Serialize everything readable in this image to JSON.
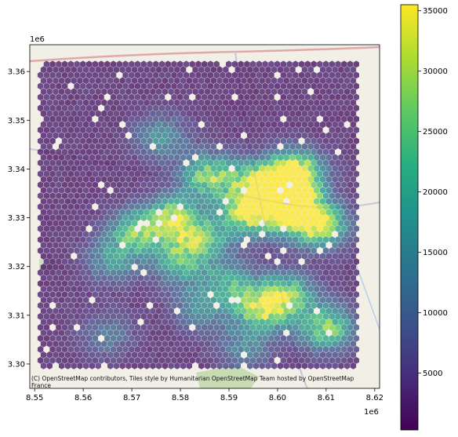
{
  "chart_data": {
    "type": "heatmap",
    "subtype": "hexbin over basemap",
    "title": "",
    "xlabel": "",
    "ylabel": "",
    "x_offset_label": "1e6",
    "y_offset_label": "1e6",
    "xlim": [
      8.549,
      8.621
    ],
    "ylim": [
      3.295,
      3.3655
    ],
    "x_ticks": [
      {
        "value": 8.55,
        "label": "8.55"
      },
      {
        "value": 8.56,
        "label": "8.56"
      },
      {
        "value": 8.57,
        "label": "8.57"
      },
      {
        "value": 8.58,
        "label": "8.58"
      },
      {
        "value": 8.59,
        "label": "8.59"
      },
      {
        "value": 8.6,
        "label": "8.60"
      },
      {
        "value": 8.61,
        "label": "8.61"
      },
      {
        "value": 8.62,
        "label": "8.62"
      }
    ],
    "y_ticks": [
      {
        "value": 3.3,
        "label": "3.30"
      },
      {
        "value": 3.31,
        "label": "3.31"
      },
      {
        "value": 3.32,
        "label": "3.32"
      },
      {
        "value": 3.33,
        "label": "3.33"
      },
      {
        "value": 3.34,
        "label": "3.34"
      },
      {
        "value": 3.35,
        "label": "3.35"
      },
      {
        "value": 3.36,
        "label": "3.36"
      }
    ],
    "colorbar": {
      "colormap": "viridis",
      "vmin": 300,
      "vmax": 35500,
      "ticks": [
        {
          "value": 5000,
          "label": "5000"
        },
        {
          "value": 10000,
          "label": "10000"
        },
        {
          "value": 15000,
          "label": "15000"
        },
        {
          "value": 20000,
          "label": "20000"
        },
        {
          "value": 25000,
          "label": "25000"
        },
        {
          "value": 30000,
          "label": "30000"
        },
        {
          "value": 35000,
          "label": "35000"
        }
      ]
    },
    "hotspots": [
      {
        "x": 8.602,
        "y": 3.336,
        "value": 34000
      },
      {
        "x": 8.603,
        "y": 3.331,
        "value": 33000
      },
      {
        "x": 8.594,
        "y": 3.331,
        "value": 31000
      },
      {
        "x": 8.5785,
        "y": 3.3295,
        "value": 30000
      },
      {
        "x": 8.586,
        "y": 3.3385,
        "value": 27000
      },
      {
        "x": 8.596,
        "y": 3.337,
        "value": 26000
      },
      {
        "x": 8.609,
        "y": 3.3285,
        "value": 28000
      },
      {
        "x": 8.604,
        "y": 3.3395,
        "value": 27000
      },
      {
        "x": 8.5965,
        "y": 3.3115,
        "value": 27000
      },
      {
        "x": 8.61,
        "y": 3.3075,
        "value": 26000
      },
      {
        "x": 8.602,
        "y": 3.314,
        "value": 24000
      },
      {
        "x": 8.571,
        "y": 3.327,
        "value": 22000
      },
      {
        "x": 8.58,
        "y": 3.321,
        "value": 20000
      },
      {
        "x": 8.585,
        "y": 3.3255,
        "value": 18000
      },
      {
        "x": 8.59,
        "y": 3.3165,
        "value": 17000
      },
      {
        "x": 8.566,
        "y": 3.3215,
        "value": 14000
      },
      {
        "x": 8.576,
        "y": 3.3465,
        "value": 13000
      },
      {
        "x": 8.584,
        "y": 3.3115,
        "value": 12000
      },
      {
        "x": 8.565,
        "y": 3.306,
        "value": 9000
      },
      {
        "x": 8.593,
        "y": 3.3035,
        "value": 11000
      }
    ],
    "background_value": 2500,
    "data_extent": {
      "xmin": 8.5512,
      "xmax": 8.6165,
      "ymin": 3.2985,
      "ymax": 3.3615
    },
    "attribution": "(C) OpenStreetMap contributors, Tiles style by Humanitarian OpenStreetMap Team hosted by OpenStreetMap France"
  }
}
